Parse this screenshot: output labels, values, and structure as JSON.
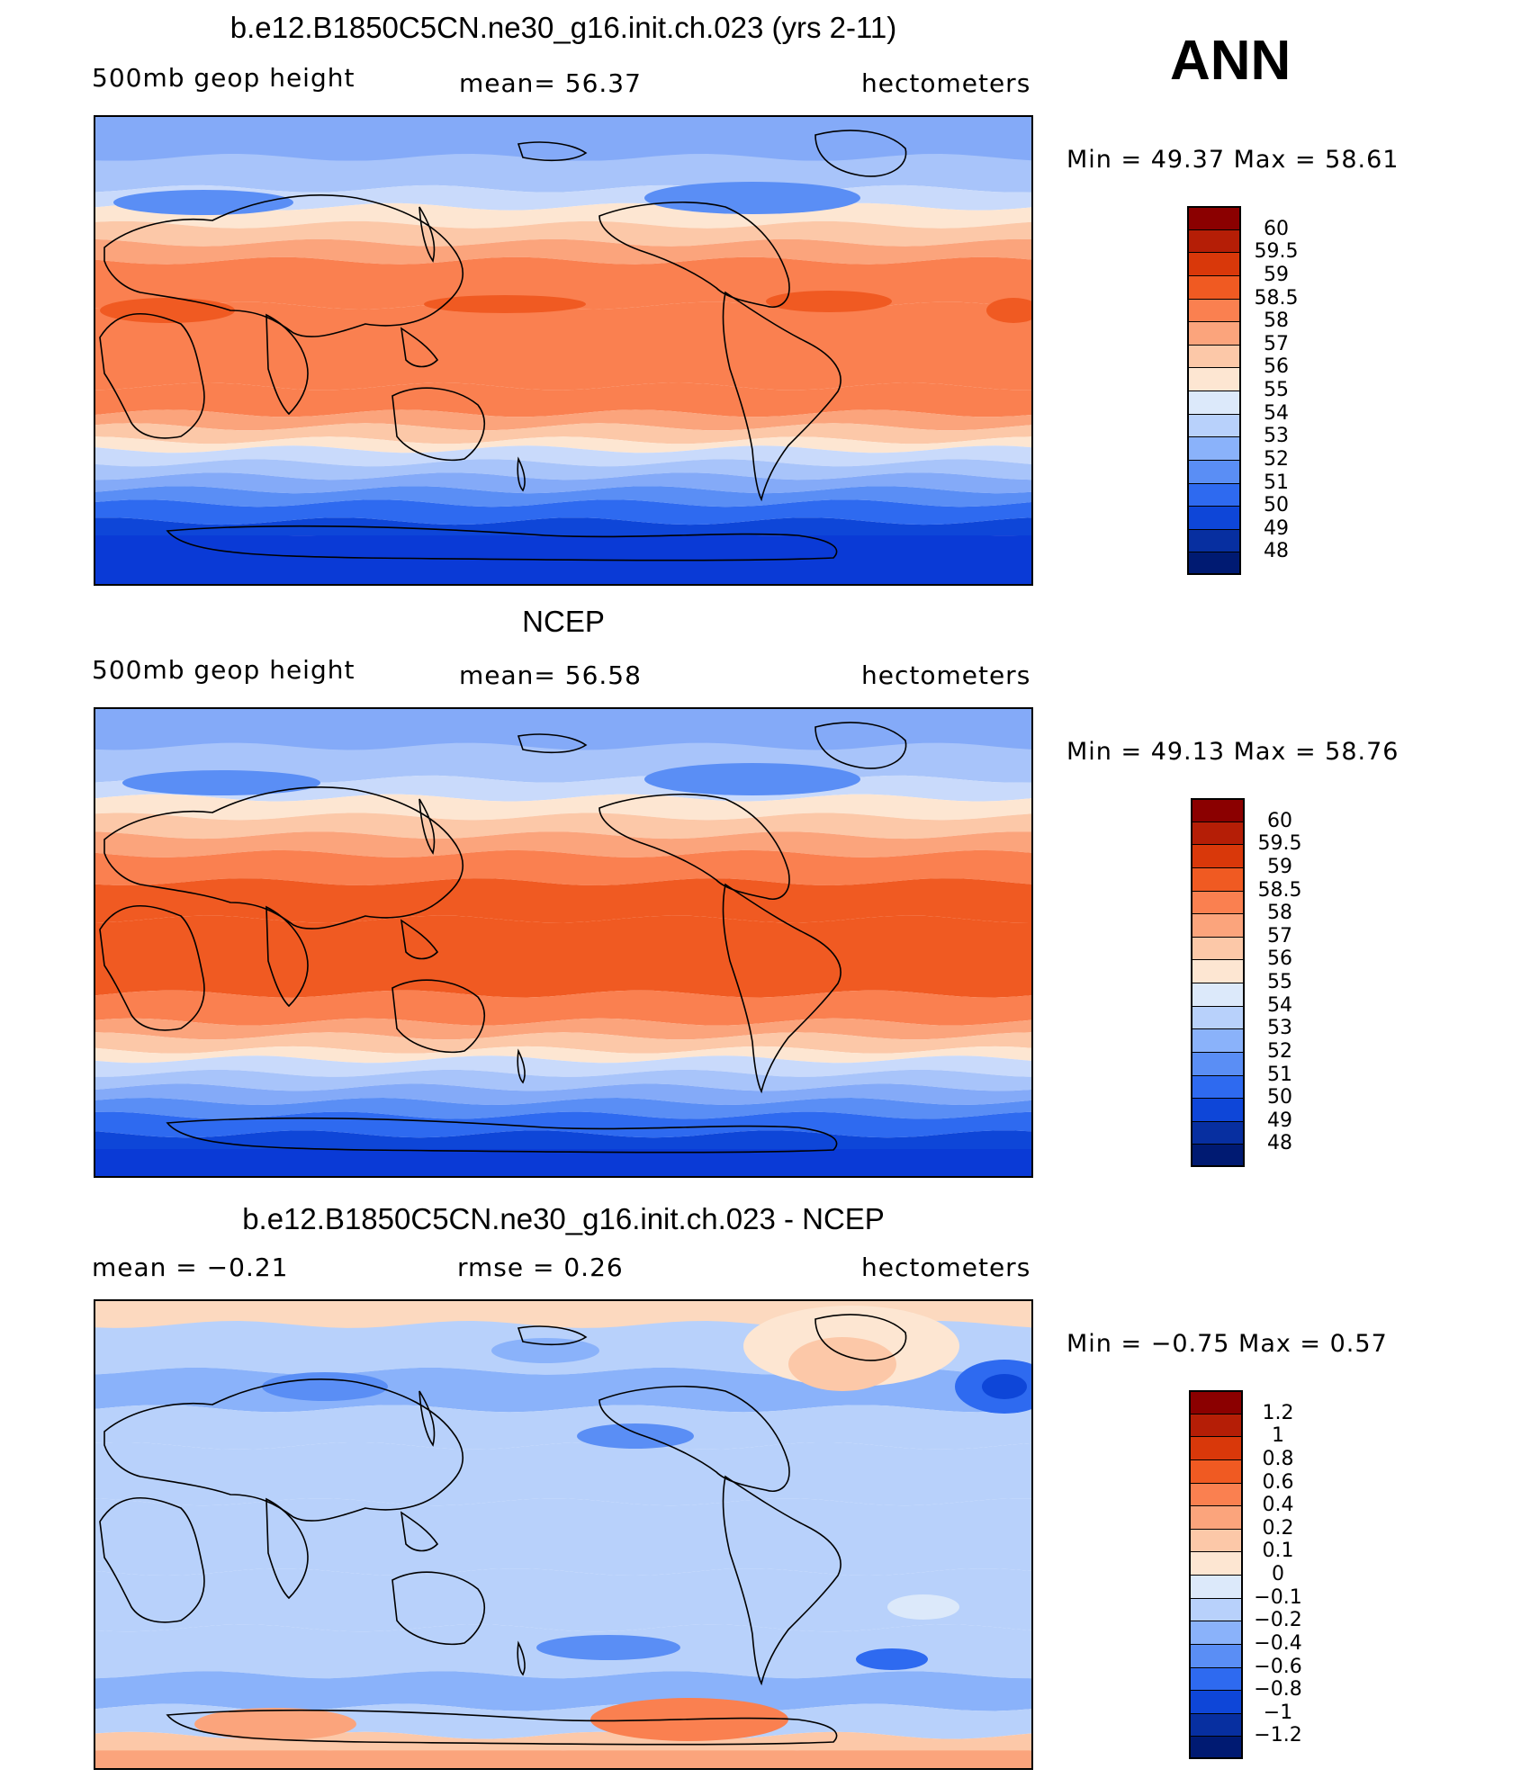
{
  "season": "ANN",
  "panels": [
    {
      "id": "model",
      "title": "b.e12.B1850C5CN.ne30_g16.init.ch.023 (yrs 2-11)",
      "left_label": "500mb  geop  height",
      "mid_label": "mean=   56.37",
      "units": "hectometers",
      "minmax": "Min  =    49.37  Max  =    58.61",
      "colorbar": {
        "labels": [
          "60",
          "59.5",
          "59",
          "58.5",
          "58",
          "57",
          "56",
          "55",
          "54",
          "53",
          "52",
          "51",
          "50",
          "49",
          "48"
        ],
        "colors": [
          "#8b0000",
          "#b51e06",
          "#d9380a",
          "#f05a22",
          "#fa8050",
          "#fba47c",
          "#fcc8a8",
          "#fde6d2",
          "#dce9fa",
          "#b8d1fb",
          "#8ab2fa",
          "#5a8ef5",
          "#2e6af0",
          "#0e46d8",
          "#072fa0",
          "#001a72"
        ]
      },
      "bands": {
        "colors": [
          "#84aaf8",
          "#a8c4fa",
          "#c9dafb",
          "#fde6d2",
          "#fcc8a8",
          "#fba47c",
          "#fa8050",
          "#fa8050",
          "#fa8050",
          "#fba47c",
          "#fcc8a8",
          "#fde6d2",
          "#c9dafb",
          "#a8c4fa",
          "#84aaf8",
          "#5a8ef5",
          "#2e6af0",
          "#0e46d8",
          "#0a3ad6"
        ],
        "fractions": [
          0.09,
          0.07,
          0.04,
          0.04,
          0.04,
          0.04,
          0.1,
          0.18,
          0.06,
          0.03,
          0.03,
          0.02,
          0.03,
          0.03,
          0.03,
          0.03,
          0.04,
          0.04,
          0.1
        ]
      }
    },
    {
      "id": "obs",
      "title": "NCEP",
      "left_label": "500mb  geop  height",
      "mid_label": "mean=   56.58",
      "units": "hectometers",
      "minmax": "Min  =    49.13  Max  =    58.76",
      "colorbar": {
        "labels": [
          "60",
          "59.5",
          "59",
          "58.5",
          "58",
          "57",
          "56",
          "55",
          "54",
          "53",
          "52",
          "51",
          "50",
          "49",
          "48"
        ],
        "colors": [
          "#8b0000",
          "#b51e06",
          "#d9380a",
          "#f05a22",
          "#fa8050",
          "#fba47c",
          "#fcc8a8",
          "#fde6d2",
          "#dce9fa",
          "#b8d1fb",
          "#8ab2fa",
          "#5a8ef5",
          "#2e6af0",
          "#0e46d8",
          "#072fa0",
          "#001a72"
        ]
      },
      "bands": {
        "colors": [
          "#84aaf8",
          "#a8c4fa",
          "#c9dafb",
          "#fde6d2",
          "#fcc8a8",
          "#fba47c",
          "#fa8050",
          "#f05a22",
          "#f05a22",
          "#fa8050",
          "#fba47c",
          "#fcc8a8",
          "#fde6d2",
          "#c9dafb",
          "#a8c4fa",
          "#84aaf8",
          "#5a8ef5",
          "#2e6af0",
          "#0e46d8",
          "#0a3ad6"
        ],
        "fractions": [
          0.08,
          0.07,
          0.04,
          0.04,
          0.04,
          0.04,
          0.06,
          0.08,
          0.16,
          0.06,
          0.03,
          0.03,
          0.02,
          0.03,
          0.03,
          0.03,
          0.03,
          0.04,
          0.04,
          0.05
        ]
      }
    },
    {
      "id": "diff",
      "title": "b.e12.B1850C5CN.ne30_g16.init.ch.023 - NCEP",
      "left_label": "mean  =    −0.21",
      "mid_label": "rmse  =     0.26",
      "units": "hectometers",
      "minmax": "Min  =    −0.75  Max  =     0.57",
      "colorbar": {
        "labels": [
          "1.2",
          "1",
          "0.8",
          "0.6",
          "0.4",
          "0.2",
          "0.1",
          "0",
          "−0.1",
          "−0.2",
          "−0.4",
          "−0.6",
          "−0.8",
          "−1",
          "−1.2"
        ],
        "colors": [
          "#8b0000",
          "#b51e06",
          "#d9380a",
          "#f05a22",
          "#fa8050",
          "#fba47c",
          "#fcc8a8",
          "#fde6d2",
          "#dce9fa",
          "#b8d1fb",
          "#8ab2fa",
          "#5a8ef5",
          "#2e6af0",
          "#0e46d8",
          "#072fa0",
          "#001a72"
        ]
      },
      "bands": {
        "colors": [
          "#fcd9bf",
          "#b8d1fb",
          "#8ab2fa",
          "#b8d1fb",
          "#b8d1fb",
          "#b8d1fb",
          "#b8d1fb",
          "#b8d1fb",
          "#8ab2fa",
          "#b8d1fb",
          "#fcc8a8",
          "#fba47c"
        ],
        "fractions": [
          0.05,
          0.1,
          0.08,
          0.08,
          0.12,
          0.15,
          0.12,
          0.1,
          0.07,
          0.06,
          0.04,
          0.03
        ]
      }
    }
  ]
}
